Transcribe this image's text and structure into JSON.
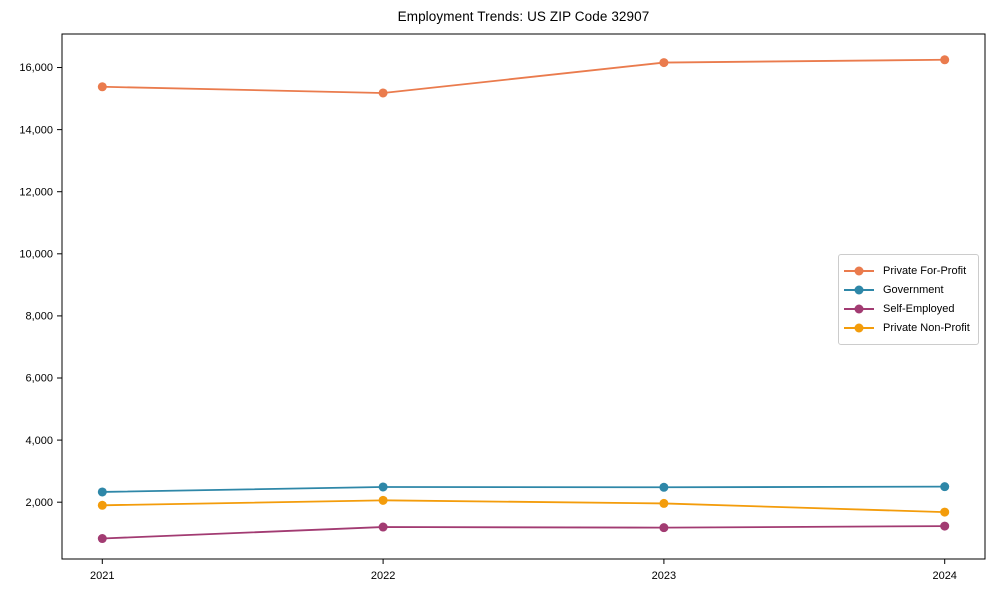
{
  "chart_data": {
    "type": "line",
    "title": "Employment Trends: US ZIP Code 32907",
    "x_categories": [
      "2021",
      "2022",
      "2023",
      "2024"
    ],
    "series": [
      {
        "name": "Private For-Profit",
        "color": "#EA7B4D",
        "values": [
          15380,
          15180,
          16160,
          16250
        ]
      },
      {
        "name": "Government",
        "color": "#2E87A8",
        "values": [
          2330,
          2490,
          2480,
          2500
        ]
      },
      {
        "name": "Self-Employed",
        "color": "#A23B72",
        "values": [
          830,
          1200,
          1180,
          1230
        ]
      },
      {
        "name": "Private Non-Profit",
        "color": "#F39C0B",
        "values": [
          1900,
          2060,
          1960,
          1680
        ]
      }
    ],
    "yticks": [
      2000,
      4000,
      6000,
      8000,
      10000,
      12000,
      14000,
      16000
    ],
    "ytick_labels": [
      "2,000",
      "4,000",
      "6,000",
      "8,000",
      "10,000",
      "12,000",
      "14,000",
      "16,000"
    ],
    "ylim": [
      170,
      17080
    ],
    "grid": false,
    "marker": "circle",
    "legend_position": "center-right",
    "axis_color": "#000000",
    "text_color": "#000000",
    "background_color": "#ffffff"
  }
}
